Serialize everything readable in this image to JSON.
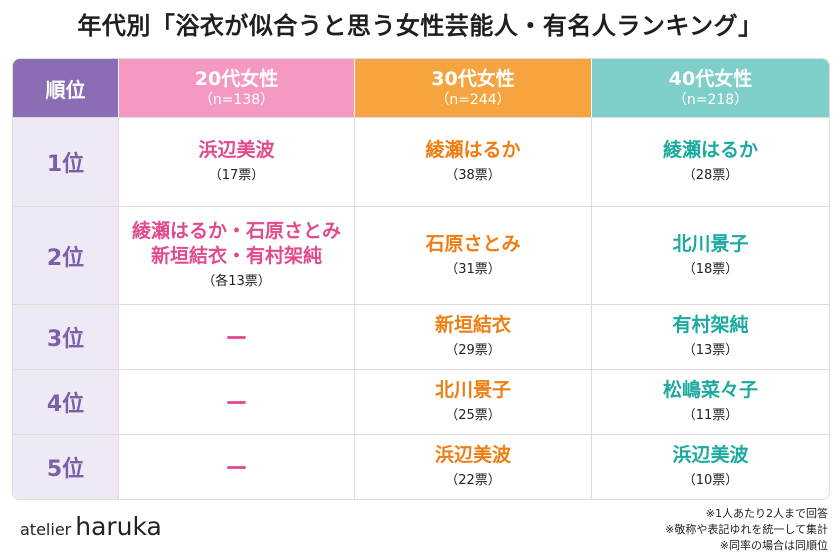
{
  "title": "年代別「浴衣が似合うと思う女性芸能人・有名人ランキング」",
  "colors": {
    "rank": "#8b6db5",
    "age20": "#f49ac2",
    "age30": "#f5a43f",
    "age40": "#7ecfc9"
  },
  "header": {
    "rank": "順位",
    "age20": {
      "label": "20代女性",
      "n": "（n=138）"
    },
    "age30": {
      "label": "30代女性",
      "n": "（n=244）"
    },
    "age40": {
      "label": "40代女性",
      "n": "（n=218）"
    }
  },
  "rows": [
    {
      "rank": "1位",
      "age20": {
        "name": "浜辺美波",
        "votes": "（17票）"
      },
      "age30": {
        "name": "綾瀬はるか",
        "votes": "（38票）"
      },
      "age40": {
        "name": "綾瀬はるか",
        "votes": "（28票）"
      }
    },
    {
      "rank": "2位",
      "age20": {
        "name1": "綾瀬はるか・石原さとみ",
        "name2": "新垣結衣・有村架純",
        "votes": "（各13票）"
      },
      "age30": {
        "name": "石原さとみ",
        "votes": "（31票）"
      },
      "age40": {
        "name": "北川景子",
        "votes": "（18票）"
      }
    },
    {
      "rank": "3位",
      "age20": {
        "dash": "ー"
      },
      "age30": {
        "name": "新垣結衣",
        "votes": "（29票）"
      },
      "age40": {
        "name": "有村架純",
        "votes": "（13票）"
      }
    },
    {
      "rank": "4位",
      "age20": {
        "dash": "ー"
      },
      "age30": {
        "name": "北川景子",
        "votes": "（25票）"
      },
      "age40": {
        "name": "松嶋菜々子",
        "votes": "（11票）"
      }
    },
    {
      "rank": "5位",
      "age20": {
        "dash": "ー"
      },
      "age30": {
        "name": "浜辺美波",
        "votes": "（22票）"
      },
      "age40": {
        "name": "浜辺美波",
        "votes": "（10票）"
      }
    }
  ],
  "logo": {
    "part1": "atelier",
    "part2": "haruka"
  },
  "notes": [
    "※1人あたり2人まで回答",
    "※敬称や表記ゆれを統一して集計",
    "※同率の場合は同順位"
  ]
}
